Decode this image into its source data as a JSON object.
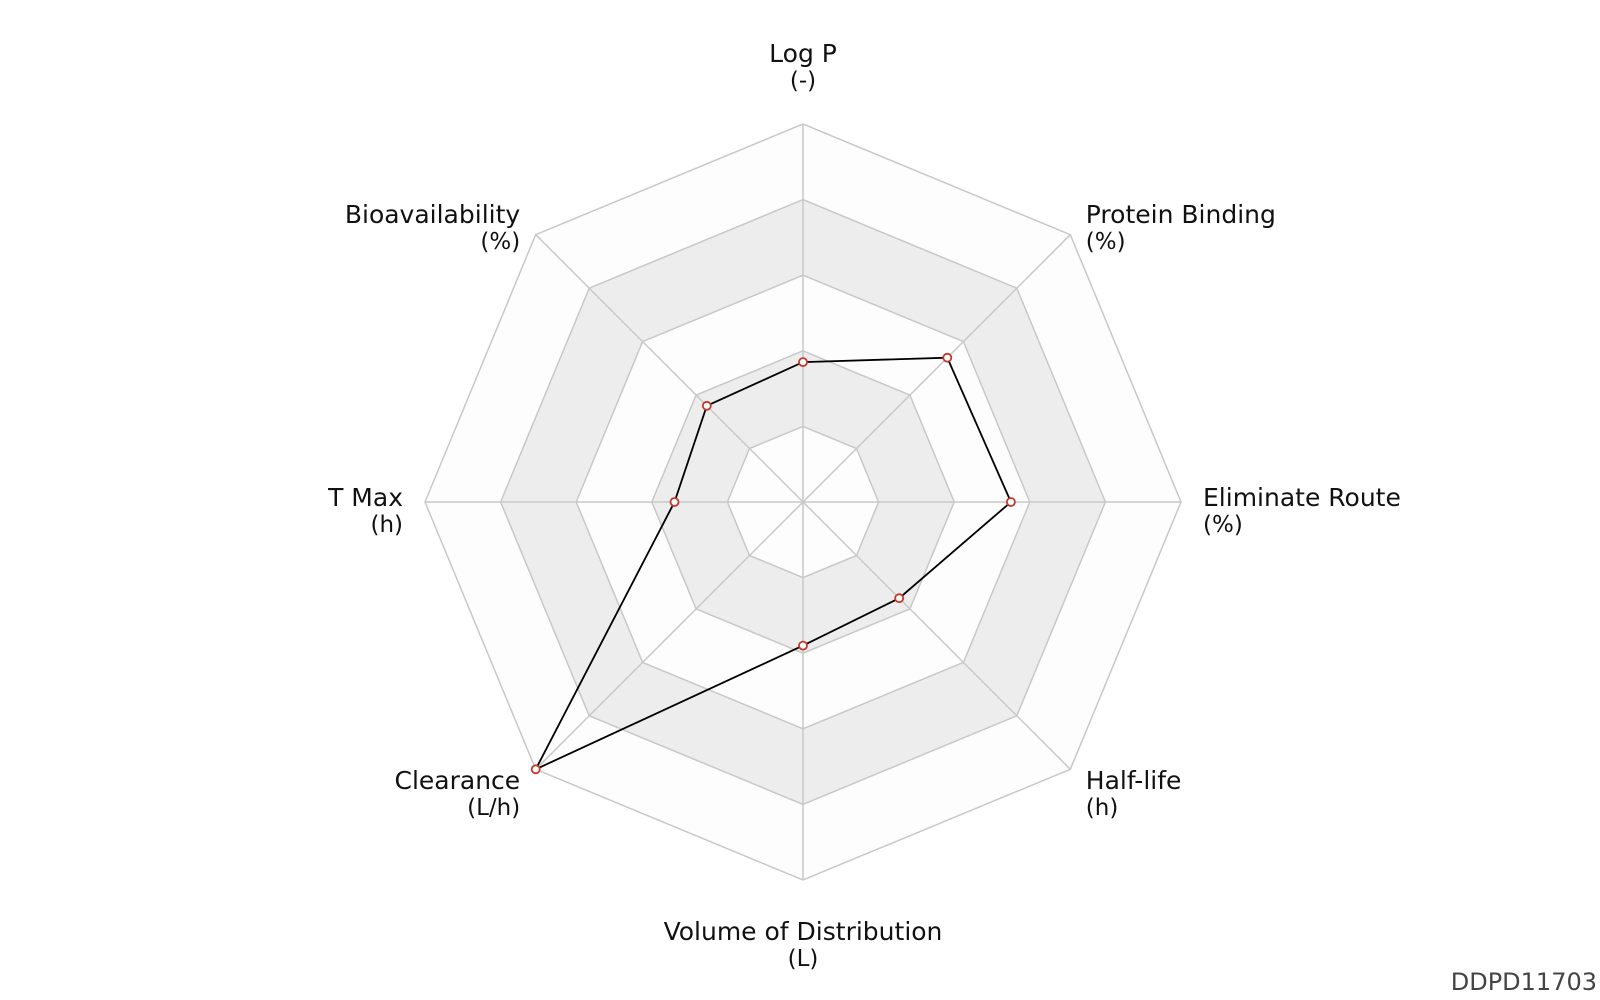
{
  "chart_data": {
    "type": "radar",
    "axes": [
      {
        "name": "Log P",
        "unit": "(-)"
      },
      {
        "name": "Protein Binding",
        "unit": "(%)"
      },
      {
        "name": "Eliminate Route",
        "unit": "(%)"
      },
      {
        "name": "Half-life",
        "unit": "(h)"
      },
      {
        "name": "Volume of Distribution",
        "unit": "(L)"
      },
      {
        "name": "Clearance",
        "unit": "(L/h)"
      },
      {
        "name": "T Max",
        "unit": "(h)"
      },
      {
        "name": "Bioavailability",
        "unit": "(%)"
      }
    ],
    "values": [
      0.37,
      0.54,
      0.55,
      0.36,
      0.38,
      1.0,
      0.34,
      0.36
    ],
    "range": [
      0,
      1
    ],
    "rings": 5,
    "colors": {
      "line": "#000000",
      "marker_stroke": "#c0392b",
      "marker_fill": "#ffffff",
      "band_light": "#fdfdfd",
      "band_dark": "#ededed",
      "grid": "#c8c8c8"
    }
  },
  "watermark": "DDPD11703"
}
